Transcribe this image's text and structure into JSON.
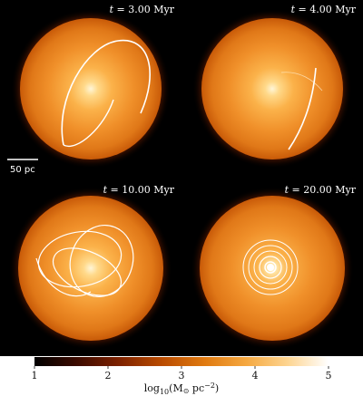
{
  "panels": [
    {
      "name": "t3",
      "time_prefix": "t = ",
      "time_value": "3.00 Myr"
    },
    {
      "name": "t4",
      "time_prefix": "t = ",
      "time_value": "4.00 Myr"
    },
    {
      "name": "t10",
      "time_prefix": "t = ",
      "time_value": "10.00 Myr"
    },
    {
      "name": "t20",
      "time_prefix": "t = ",
      "time_value": "20.00 Myr"
    }
  ],
  "scale_bar": {
    "label": "50 pc"
  },
  "colorbar": {
    "ticks": [
      "1",
      "2",
      "3",
      "4",
      "5"
    ],
    "tick_values": [
      1,
      2,
      3,
      4,
      5
    ],
    "range": [
      1,
      5
    ],
    "title_main": "log",
    "title_sub": "10",
    "title_rest": "(M",
    "title_sun": "⊙",
    "title_unit": " pc",
    "title_exp": "−2",
    "title_close": ")",
    "colormap": [
      "#000000",
      "#3a0a00",
      "#7a2000",
      "#b84a00",
      "#e07a10",
      "#f5a840",
      "#fdd490",
      "#ffffff"
    ]
  },
  "colors": {
    "background": "#000000",
    "trajectory": "#ffffff"
  }
}
